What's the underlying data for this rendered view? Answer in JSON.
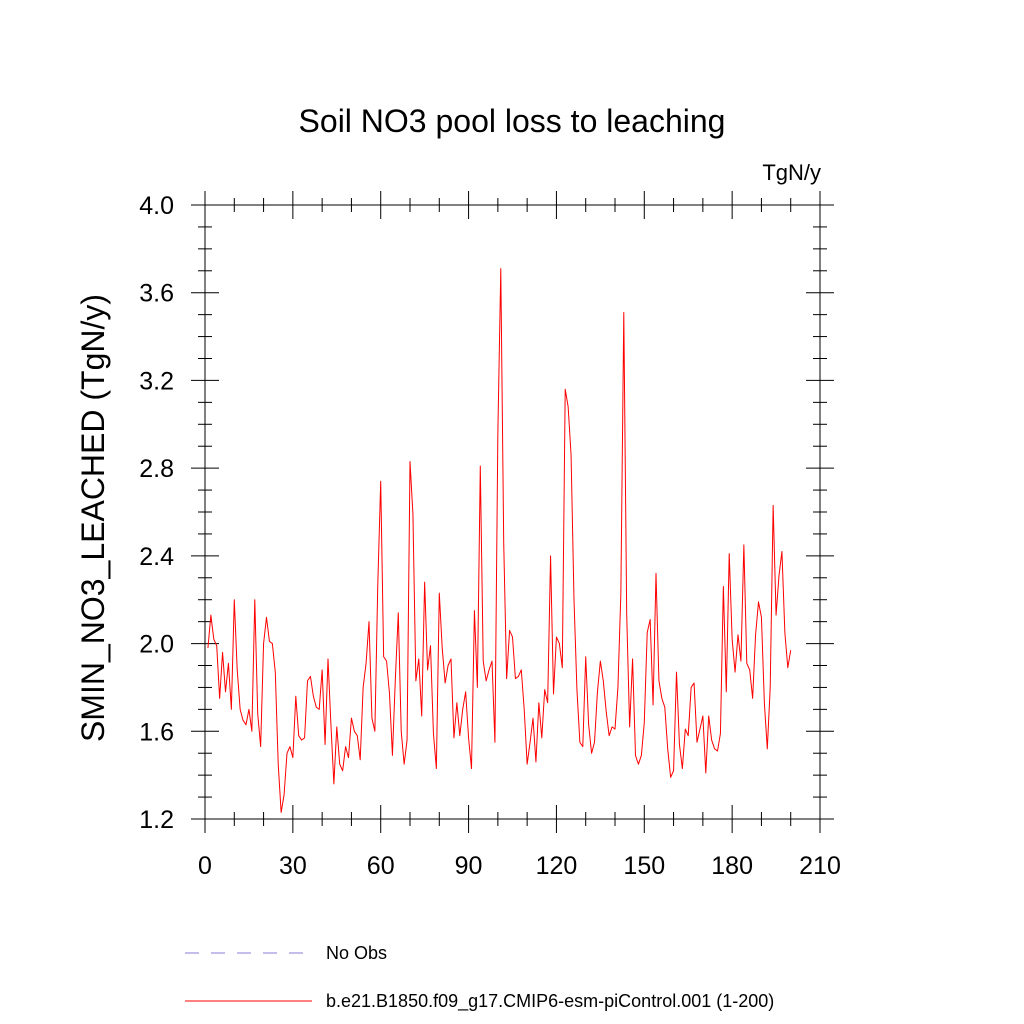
{
  "chart_data": {
    "type": "line",
    "title": "Soil NO3 pool loss to leaching",
    "units_label": "TgN/y",
    "xlabel": "",
    "ylabel": "SMIN_NO3_LEACHED  (TgN/y)",
    "xlim": [
      0,
      210
    ],
    "ylim": [
      1.2,
      4.0
    ],
    "x_ticks": [
      "0",
      "30",
      "60",
      "90",
      "120",
      "150",
      "180",
      "210"
    ],
    "y_ticks": [
      "1.2",
      "1.6",
      "2.0",
      "2.4",
      "2.8",
      "3.2",
      "3.6",
      "4.0"
    ],
    "grid": false,
    "series": [
      {
        "name": "b.e21.B1850.f09_g17.CMIP6-esm-piControl.001 (1-200)",
        "color": "#ff0000",
        "style": "solid",
        "x_start": 1,
        "values": [
          1.98,
          2.13,
          2.02,
          1.99,
          1.75,
          1.96,
          1.78,
          1.91,
          1.7,
          2.2,
          1.88,
          1.7,
          1.65,
          1.63,
          1.7,
          1.6,
          2.2,
          1.68,
          1.53,
          2.0,
          2.12,
          2.01,
          2.0,
          1.87,
          1.45,
          1.23,
          1.31,
          1.5,
          1.53,
          1.48,
          1.76,
          1.58,
          1.56,
          1.57,
          1.83,
          1.85,
          1.76,
          1.71,
          1.7,
          1.88,
          1.54,
          1.93,
          1.63,
          1.36,
          1.62,
          1.45,
          1.42,
          1.53,
          1.48,
          1.66,
          1.6,
          1.58,
          1.47,
          1.8,
          1.91,
          2.1,
          1.66,
          1.6,
          2.27,
          2.74,
          1.94,
          1.92,
          1.77,
          1.49,
          1.84,
          2.14,
          1.6,
          1.45,
          1.56,
          2.83,
          2.59,
          1.83,
          1.93,
          1.67,
          2.28,
          1.88,
          1.99,
          1.59,
          1.43,
          2.23,
          1.98,
          1.82,
          1.9,
          1.93,
          1.57,
          1.73,
          1.58,
          1.7,
          1.78,
          1.57,
          1.43,
          2.15,
          1.8,
          2.81,
          1.92,
          1.83,
          1.88,
          1.92,
          1.55,
          2.96,
          3.71,
          2.46,
          1.84,
          2.06,
          2.03,
          1.84,
          1.85,
          1.88,
          1.7,
          1.45,
          1.55,
          1.66,
          1.46,
          1.73,
          1.57,
          1.79,
          1.73,
          2.4,
          1.77,
          2.03,
          2.0,
          1.89,
          3.16,
          3.08,
          2.86,
          2.2,
          1.79,
          1.55,
          1.53,
          1.94,
          1.63,
          1.5,
          1.55,
          1.78,
          1.92,
          1.83,
          1.69,
          1.58,
          1.62,
          1.61,
          1.8,
          2.23,
          3.51,
          2.13,
          1.62,
          1.93,
          1.49,
          1.45,
          1.49,
          1.64,
          2.05,
          2.11,
          1.72,
          2.32,
          1.83,
          1.75,
          1.71,
          1.52,
          1.39,
          1.42,
          1.87,
          1.54,
          1.43,
          1.61,
          1.58,
          1.8,
          1.82,
          1.55,
          1.61,
          1.67,
          1.41,
          1.67,
          1.56,
          1.52,
          1.51,
          1.59,
          2.26,
          1.78,
          2.41,
          2.02,
          1.87,
          2.04,
          1.92,
          2.45,
          1.91,
          1.88,
          1.75,
          2.04,
          2.19,
          2.12,
          1.73,
          1.52,
          1.8,
          2.63,
          2.13,
          2.31,
          2.42,
          2.05,
          1.89,
          1.97
        ]
      }
    ],
    "legend": [
      {
        "label": "No Obs",
        "color": "#8a7fd6",
        "style": "dashed"
      },
      {
        "label": "b.e21.B1850.f09_g17.CMIP6-esm-piControl.001 (1-200)",
        "color": "#ff0000",
        "style": "solid"
      }
    ],
    "legend_position": "bottom-left"
  }
}
